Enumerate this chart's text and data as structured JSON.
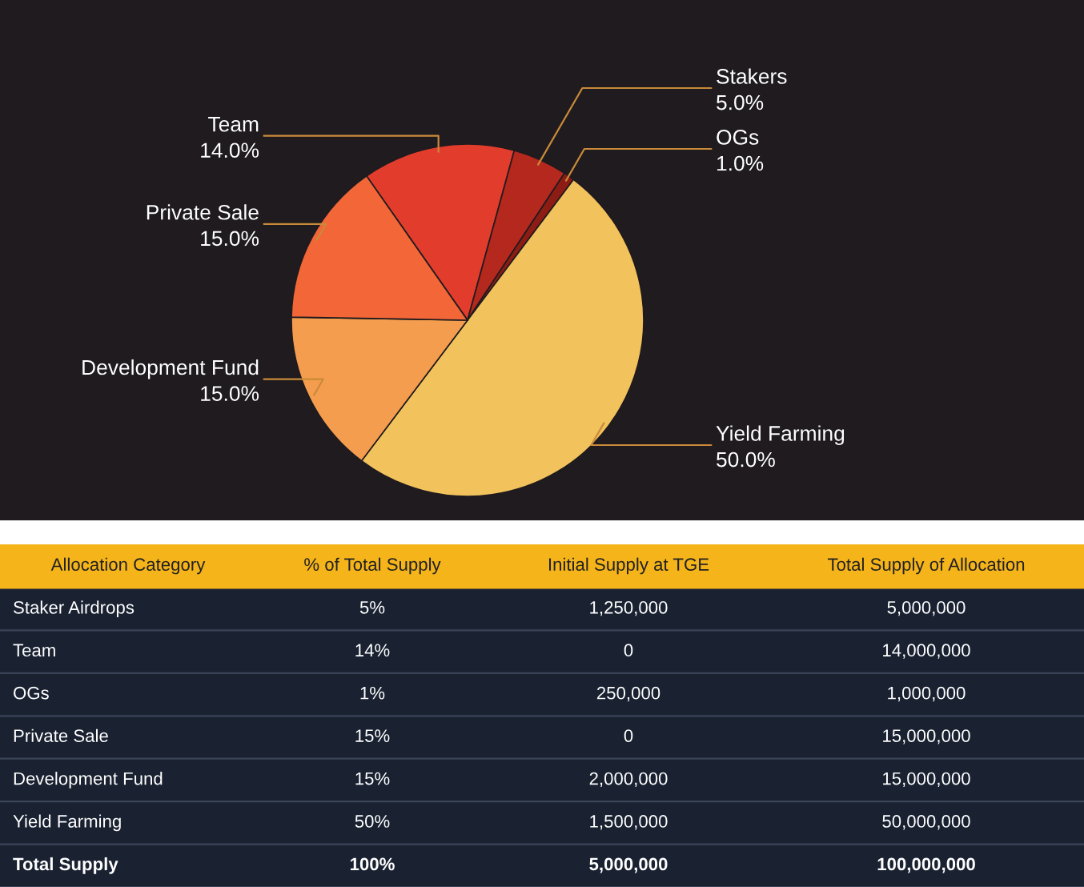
{
  "chart_data": [
    {
      "type": "pie",
      "categories": [
        "Team",
        "Stakers",
        "OGs",
        "Yield Farming",
        "Development Fund",
        "Private Sale"
      ],
      "values": [
        14,
        5,
        1,
        50,
        15,
        15
      ],
      "value_labels": [
        "14.0%",
        "5.0%",
        "1.0%",
        "50.0%",
        "15.0%",
        "15.0%"
      ],
      "colors": [
        "#e23c2c",
        "#b5281e",
        "#8c1c14",
        "#f2c25c",
        "#f59d4e",
        "#f26638"
      ]
    },
    {
      "type": "other",
      "categories": [
        "Allocation Category",
        "% of Total Supply",
        "Initial Supply at TGE",
        "Total Supply of Allocation"
      ],
      "annotations": [
        "Staker Airdrops",
        "5%",
        "1,250,000",
        "5,000,000",
        "Team",
        "14%",
        "0",
        "14,000,000",
        "OGs",
        "1%",
        "250,000",
        "1,000,000",
        "Private Sale",
        "15%",
        "0",
        "15,000,000",
        "Development Fund",
        "15%",
        "2,000,000",
        "15,000,000",
        "Yield Farming",
        "50%",
        "1,500,000",
        "50,000,000",
        "Total Supply",
        "100%",
        "5,000,000",
        "100,000,000"
      ]
    }
  ]
}
